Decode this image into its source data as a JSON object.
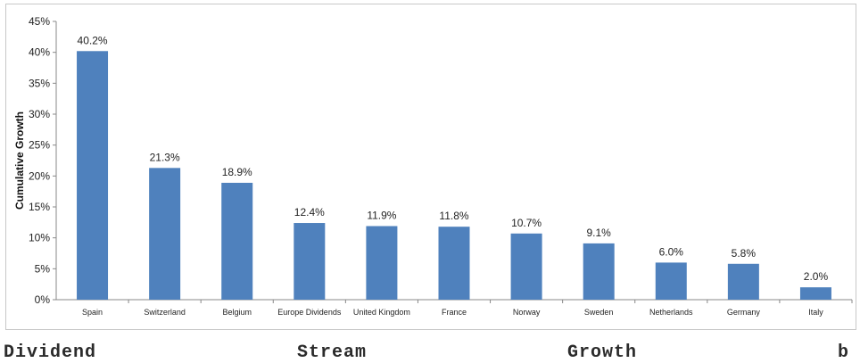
{
  "chart_data": {
    "type": "bar",
    "title": "",
    "xlabel": "",
    "ylabel": "Cumulative Growth",
    "ylim": [
      0,
      45
    ],
    "yticks": [
      "0%",
      "5%",
      "10%",
      "15%",
      "20%",
      "25%",
      "30%",
      "35%",
      "40%",
      "45%"
    ],
    "grid": false,
    "bar_color": "#4f81bd",
    "categories": [
      "Spain",
      "Switzerland",
      "Belgium",
      "Europe Dividends",
      "United Kingdom",
      "France",
      "Norway",
      "Sweden",
      "Netherlands",
      "Germany",
      "Italy"
    ],
    "values": [
      40.2,
      21.3,
      18.9,
      12.4,
      11.9,
      11.8,
      10.7,
      9.1,
      6.0,
      5.8,
      2.0
    ],
    "data_labels": [
      "40.2%",
      "21.3%",
      "18.9%",
      "12.4%",
      "11.9%",
      "11.8%",
      "10.7%",
      "9.1%",
      "6.0%",
      "5.8%",
      "2.0%"
    ]
  },
  "caption": {
    "words": [
      "Dividend",
      "Stream",
      "Growth",
      "b"
    ]
  }
}
